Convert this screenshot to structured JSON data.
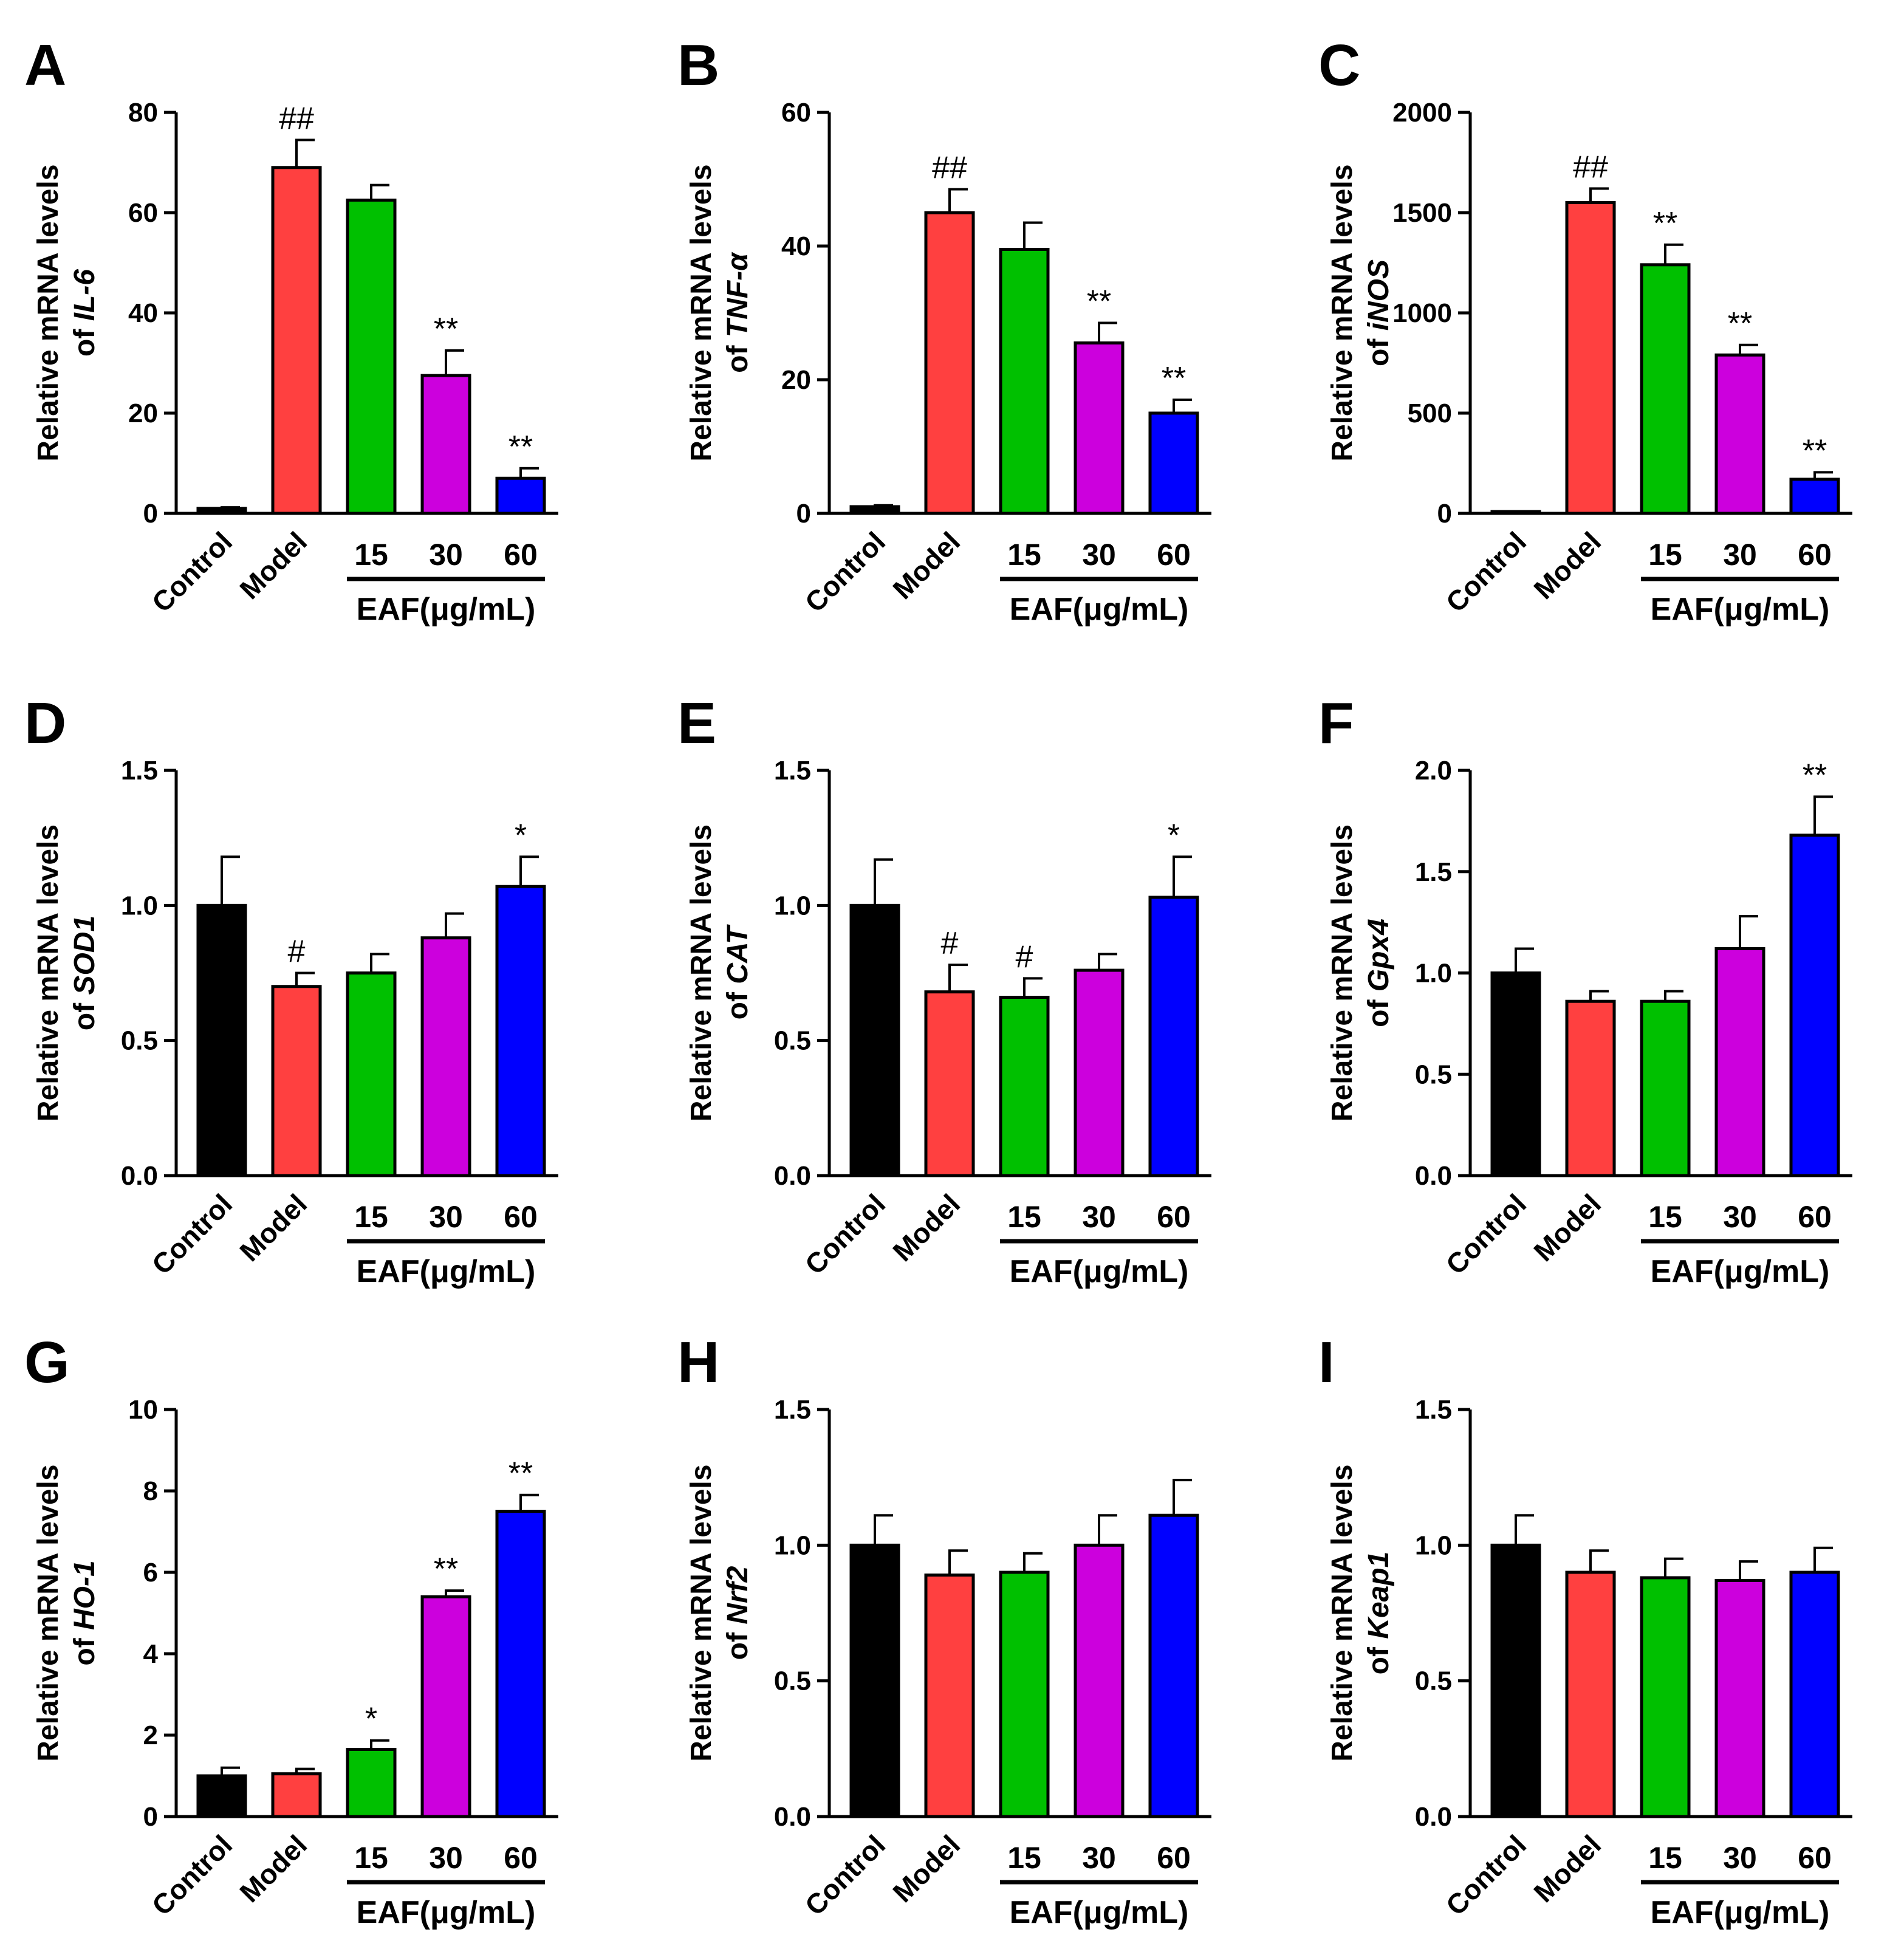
{
  "figure": {
    "group_label": "EAF(μg/mL)",
    "x_categories": [
      "Control",
      "Model",
      "15",
      "30",
      "60"
    ],
    "colors": [
      "#000000",
      "#FF4040",
      "#00C000",
      "#CC00DD",
      "#0000FF"
    ]
  },
  "chart_data": [
    {
      "panel": "A",
      "type": "bar",
      "ylabel_line1": "Relative mRNA levels",
      "ylabel_prefix": "of ",
      "gene": "IL-6",
      "categories": [
        "Control",
        "Model",
        "15",
        "30",
        "60"
      ],
      "values": [
        1,
        69,
        62.5,
        27.5,
        7
      ],
      "errors": [
        0.2,
        5.5,
        3,
        5,
        2
      ],
      "significance": [
        "",
        "##",
        "",
        "**",
        "**"
      ],
      "ylim": [
        0,
        80
      ],
      "yticks": [
        0,
        20,
        40,
        60,
        80
      ],
      "ytick_labels": [
        "0",
        "20",
        "40",
        "60",
        "80"
      ]
    },
    {
      "panel": "B",
      "type": "bar",
      "ylabel_line1": "Relative mRNA levels",
      "ylabel_prefix": "of ",
      "gene": "TNF-α",
      "categories": [
        "Control",
        "Model",
        "15",
        "30",
        "60"
      ],
      "values": [
        1,
        45,
        39.5,
        25.5,
        15
      ],
      "errors": [
        0.2,
        3.5,
        4,
        3,
        2
      ],
      "significance": [
        "",
        "##",
        "",
        "**",
        "**"
      ],
      "ylim": [
        0,
        60
      ],
      "yticks": [
        0,
        20,
        40,
        60
      ],
      "ytick_labels": [
        "0",
        "20",
        "40",
        "60"
      ]
    },
    {
      "panel": "C",
      "type": "bar",
      "ylabel_line1": "Relative mRNA levels",
      "ylabel_prefix": "of ",
      "gene": "iNOS",
      "categories": [
        "Control",
        "Model",
        "15",
        "30",
        "60"
      ],
      "values": [
        1,
        1550,
        1240,
        790,
        170
      ],
      "errors": [
        0,
        70,
        100,
        50,
        35
      ],
      "significance": [
        "",
        "##",
        "**",
        "**",
        "**"
      ],
      "ylim": [
        0,
        2000
      ],
      "yticks": [
        0,
        500,
        1000,
        1500,
        2000
      ],
      "ytick_labels": [
        "0",
        "500",
        "1000",
        "1500",
        "2000"
      ]
    },
    {
      "panel": "D",
      "type": "bar",
      "ylabel_line1": "Relative mRNA levels",
      "ylabel_prefix": "of ",
      "gene": "SOD1",
      "categories": [
        "Control",
        "Model",
        "15",
        "30",
        "60"
      ],
      "values": [
        1.0,
        0.7,
        0.75,
        0.88,
        1.07
      ],
      "errors": [
        0.18,
        0.05,
        0.07,
        0.09,
        0.11
      ],
      "significance": [
        "",
        "#",
        "",
        "",
        "*"
      ],
      "ylim": [
        0,
        1.5
      ],
      "yticks": [
        0,
        0.5,
        1.0,
        1.5
      ],
      "ytick_labels": [
        "0.0",
        "0.5",
        "1.0",
        "1.5"
      ]
    },
    {
      "panel": "E",
      "type": "bar",
      "ylabel_line1": "Relative mRNA levels",
      "ylabel_prefix": "of ",
      "gene": "CAT",
      "categories": [
        "Control",
        "Model",
        "15",
        "30",
        "60"
      ],
      "values": [
        1.0,
        0.68,
        0.66,
        0.76,
        1.03
      ],
      "errors": [
        0.17,
        0.1,
        0.07,
        0.06,
        0.15
      ],
      "significance": [
        "",
        "#",
        "#",
        "",
        "*"
      ],
      "ylim": [
        0,
        1.5
      ],
      "yticks": [
        0,
        0.5,
        1.0,
        1.5
      ],
      "ytick_labels": [
        "0.0",
        "0.5",
        "1.0",
        "1.5"
      ]
    },
    {
      "panel": "F",
      "type": "bar",
      "ylabel_line1": "Relative mRNA levels",
      "ylabel_prefix": "of ",
      "gene": "Gpx4",
      "categories": [
        "Control",
        "Model",
        "15",
        "30",
        "60"
      ],
      "values": [
        1.0,
        0.86,
        0.86,
        1.12,
        1.68
      ],
      "errors": [
        0.12,
        0.05,
        0.05,
        0.16,
        0.19
      ],
      "significance": [
        "",
        "",
        "",
        "",
        "**"
      ],
      "ylim": [
        0,
        2.0
      ],
      "yticks": [
        0,
        0.5,
        1.0,
        1.5,
        2.0
      ],
      "ytick_labels": [
        "0.0",
        "0.5",
        "1.0",
        "1.5",
        "2.0"
      ]
    },
    {
      "panel": "G",
      "type": "bar",
      "ylabel_line1": "Relative mRNA levels",
      "ylabel_prefix": "of ",
      "gene": "HO-1",
      "categories": [
        "Control",
        "Model",
        "15",
        "30",
        "60"
      ],
      "values": [
        1.0,
        1.05,
        1.65,
        5.4,
        7.5
      ],
      "errors": [
        0.2,
        0.12,
        0.22,
        0.15,
        0.4
      ],
      "significance": [
        "",
        "",
        "*",
        "**",
        "**"
      ],
      "ylim": [
        0,
        10
      ],
      "yticks": [
        0,
        2,
        4,
        6,
        8,
        10
      ],
      "ytick_labels": [
        "0",
        "2",
        "4",
        "6",
        "8",
        "10"
      ]
    },
    {
      "panel": "H",
      "type": "bar",
      "ylabel_line1": "Relative mRNA levels",
      "ylabel_prefix": "of ",
      "gene": "Nrf2",
      "categories": [
        "Control",
        "Model",
        "15",
        "30",
        "60"
      ],
      "values": [
        1.0,
        0.89,
        0.9,
        1.0,
        1.11
      ],
      "errors": [
        0.11,
        0.09,
        0.07,
        0.11,
        0.13
      ],
      "significance": [
        "",
        "",
        "",
        "",
        ""
      ],
      "ylim": [
        0,
        1.5
      ],
      "yticks": [
        0,
        0.5,
        1.0,
        1.5
      ],
      "ytick_labels": [
        "0.0",
        "0.5",
        "1.0",
        "1.5"
      ]
    },
    {
      "panel": "I",
      "type": "bar",
      "ylabel_line1": "Relative mRNA levels",
      "ylabel_prefix": "of ",
      "gene": "Keap1",
      "categories": [
        "Control",
        "Model",
        "15",
        "30",
        "60"
      ],
      "values": [
        1.0,
        0.9,
        0.88,
        0.87,
        0.9
      ],
      "errors": [
        0.11,
        0.08,
        0.07,
        0.07,
        0.09
      ],
      "significance": [
        "",
        "",
        "",
        "",
        ""
      ],
      "ylim": [
        0,
        1.5
      ],
      "yticks": [
        0,
        0.5,
        1.0,
        1.5
      ],
      "ytick_labels": [
        "0.0",
        "0.5",
        "1.0",
        "1.5"
      ]
    }
  ]
}
